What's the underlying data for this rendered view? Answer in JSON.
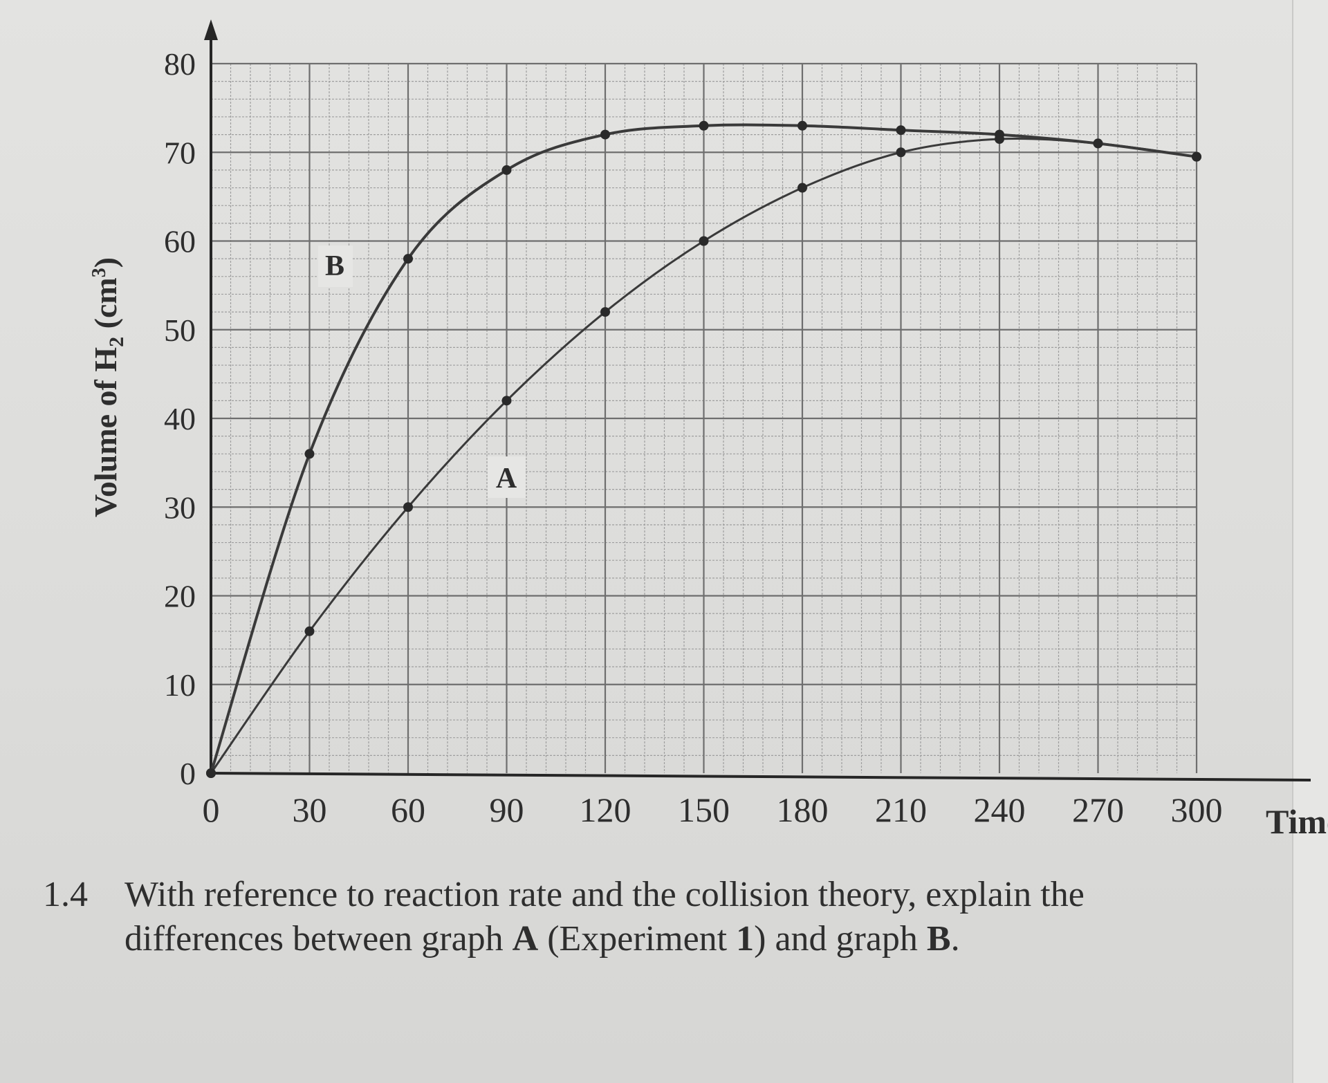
{
  "chart_data": {
    "type": "line",
    "title": "",
    "xlabel": "Time",
    "ylabel_main": "Volume of H",
    "ylabel_sub": "2",
    "ylabel_unit_open": " (cm",
    "ylabel_unit_sup": "3",
    "ylabel_unit_close": ")",
    "xlim": [
      0,
      300
    ],
    "ylim": [
      0,
      80
    ],
    "x_ticks": [
      0,
      30,
      60,
      90,
      120,
      150,
      180,
      210,
      240,
      270,
      300
    ],
    "y_ticks": [
      0,
      10,
      20,
      30,
      40,
      50,
      60,
      70,
      80
    ],
    "grid": true,
    "series": [
      {
        "name": "A",
        "x": [
          0,
          30,
          60,
          90,
          120,
          150,
          180,
          210,
          240,
          270,
          300
        ],
        "y": [
          0,
          16,
          30,
          42,
          52,
          60,
          66,
          70,
          71.5,
          71,
          69.5
        ]
      },
      {
        "name": "B",
        "x": [
          0,
          30,
          60,
          90,
          120,
          150,
          180,
          210,
          240,
          270,
          300
        ],
        "y": [
          0,
          36,
          58,
          68,
          72,
          73,
          73,
          72.5,
          72,
          71,
          69.5
        ]
      }
    ],
    "colors": {
      "axis": "#262626",
      "grid_major": "#6e6e6e",
      "grid_minor": "#9e9e9e",
      "line": "#3a3a3a"
    }
  },
  "question": {
    "number": "1.4",
    "line1": "With reference to reaction rate and the collision theory, explain the",
    "line2_a": "differences between graph ",
    "line2_A": "A",
    "line2_b": " (Experiment ",
    "line2_1": "1",
    "line2_c": ") and graph ",
    "line2_B": "B",
    "line2_d": "."
  }
}
